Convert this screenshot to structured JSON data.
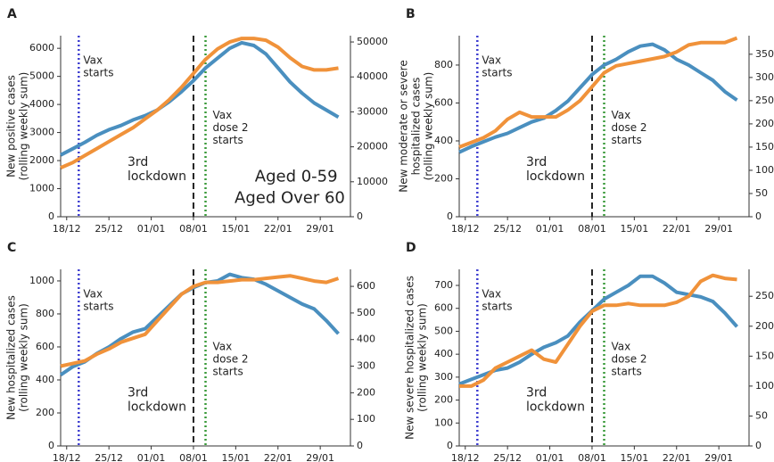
{
  "chart_data": [
    {
      "type": "line",
      "label": "A",
      "ylabel": [
        "New positive cases",
        "(rolling weekly sum)"
      ],
      "x": [
        "17/12",
        "19/12",
        "21/12",
        "23/12",
        "25/12",
        "27/12",
        "29/12",
        "31/12",
        "02/01",
        "04/01",
        "06/01",
        "08/01",
        "10/01",
        "12/01",
        "14/01",
        "16/01",
        "18/01",
        "20/01",
        "22/01",
        "24/01",
        "26/01",
        "28/01",
        "30/01",
        "01/02"
      ],
      "xlim": [
        "17/12",
        "03/02"
      ],
      "xticks": [
        "18/12",
        "25/12",
        "01/01",
        "08/01",
        "15/01",
        "22/01",
        "29/01"
      ],
      "ylim": [
        0,
        6450
      ],
      "yticks": [
        0,
        1000,
        2000,
        3000,
        4000,
        5000,
        6000
      ],
      "y2lim": [
        0,
        51800
      ],
      "y2ticks": [
        0,
        10000,
        20000,
        30000,
        40000,
        50000
      ],
      "series": [
        {
          "name": "Aged Over 60",
          "color": "#4a8fbf",
          "values": [
            2200,
            2420,
            2650,
            2900,
            3100,
            3250,
            3450,
            3600,
            3800,
            4100,
            4450,
            4850,
            5300,
            5650,
            6000,
            6200,
            6100,
            5800,
            5300,
            4800,
            4400,
            4050,
            3800,
            3550
          ]
        },
        {
          "name": "Aged 0-59",
          "color": "#f0923a",
          "axis": "y2",
          "values": [
            14000,
            15500,
            17500,
            19500,
            21500,
            23500,
            25500,
            28000,
            30500,
            33500,
            37000,
            41000,
            45000,
            48000,
            50000,
            51000,
            51000,
            50500,
            48500,
            45500,
            43000,
            42000,
            42000,
            42500
          ]
        }
      ],
      "annotations": [
        {
          "x": "20/12",
          "text": [
            "Vax",
            "starts"
          ],
          "color": "#3c3cd0",
          "style": "dotted",
          "place": "top"
        },
        {
          "x": "08/01",
          "text": [
            "3rd",
            "lockdown"
          ],
          "color": "#222222",
          "style": "dashed",
          "place": "left"
        },
        {
          "x": "10/01",
          "text": [
            "Vax",
            "dose 2",
            "starts"
          ],
          "color": "#3a9a3a",
          "style": "dotted",
          "place": "mid"
        }
      ]
    },
    {
      "type": "line",
      "label": "B",
      "ylabel": [
        "New moderate or severe",
        "hospitalized cases",
        "(rolling weekly sum)"
      ],
      "x": [
        "17/12",
        "19/12",
        "21/12",
        "23/12",
        "25/12",
        "27/12",
        "29/12",
        "31/12",
        "02/01",
        "04/01",
        "06/01",
        "08/01",
        "10/01",
        "12/01",
        "14/01",
        "16/01",
        "18/01",
        "20/01",
        "22/01",
        "24/01",
        "26/01",
        "28/01",
        "30/01",
        "01/02"
      ],
      "xlim": [
        "17/12",
        "03/02"
      ],
      "xticks": [
        "18/12",
        "25/12",
        "01/01",
        "08/01",
        "15/01",
        "22/01",
        "29/01"
      ],
      "ylim": [
        0,
        955
      ],
      "yticks": [
        0,
        200,
        400,
        600,
        800
      ],
      "y2lim": [
        0,
        390
      ],
      "y2ticks": [
        0,
        50,
        100,
        150,
        200,
        250,
        300,
        350
      ],
      "series": [
        {
          "color": "#4a8fbf",
          "values": [
            340,
            370,
            395,
            420,
            440,
            470,
            500,
            520,
            560,
            610,
            680,
            750,
            800,
            830,
            870,
            900,
            910,
            880,
            830,
            800,
            760,
            720,
            660,
            615
          ]
        },
        {
          "color": "#f0923a",
          "axis": "y2",
          "values": [
            150,
            160,
            170,
            185,
            210,
            225,
            215,
            215,
            215,
            230,
            250,
            280,
            310,
            325,
            330,
            335,
            340,
            345,
            355,
            370,
            375,
            375,
            375,
            385
          ]
        }
      ],
      "annotations": [
        {
          "x": "20/12",
          "text": [
            "Vax",
            "starts"
          ],
          "color": "#3c3cd0",
          "style": "dotted",
          "place": "top"
        },
        {
          "x": "08/01",
          "text": [
            "3rd",
            "lockdown"
          ],
          "color": "#222222",
          "style": "dashed",
          "place": "left"
        },
        {
          "x": "10/01",
          "text": [
            "Vax",
            "dose 2",
            "starts"
          ],
          "color": "#3a9a3a",
          "style": "dotted",
          "place": "mid"
        }
      ]
    },
    {
      "type": "line",
      "label": "C",
      "ylabel": [
        "New hospitalized cases",
        "(rolling weekly sum)"
      ],
      "x": [
        "17/12",
        "19/12",
        "21/12",
        "23/12",
        "25/12",
        "27/12",
        "29/12",
        "31/12",
        "02/01",
        "04/01",
        "06/01",
        "08/01",
        "10/01",
        "12/01",
        "14/01",
        "16/01",
        "18/01",
        "20/01",
        "22/01",
        "24/01",
        "26/01",
        "28/01",
        "30/01",
        "01/02"
      ],
      "xlim": [
        "17/12",
        "03/02"
      ],
      "xticks": [
        "18/12",
        "25/12",
        "01/01",
        "08/01",
        "15/01",
        "22/01",
        "29/01"
      ],
      "ylim": [
        0,
        1070
      ],
      "yticks": [
        0,
        200,
        400,
        600,
        800,
        1000
      ],
      "y2lim": [
        0,
        664
      ],
      "y2ticks": [
        0,
        100,
        200,
        300,
        400,
        500,
        600
      ],
      "series": [
        {
          "color": "#4a8fbf",
          "values": [
            430,
            480,
            510,
            560,
            600,
            650,
            690,
            710,
            780,
            850,
            920,
            960,
            990,
            1000,
            1040,
            1020,
            1010,
            980,
            940,
            900,
            860,
            830,
            760,
            680
          ]
        },
        {
          "color": "#f0923a",
          "axis": "y2",
          "values": [
            300,
            310,
            320,
            345,
            365,
            390,
            405,
            420,
            470,
            520,
            570,
            600,
            615,
            615,
            620,
            625,
            625,
            630,
            635,
            640,
            630,
            620,
            615,
            630
          ]
        }
      ],
      "annotations": [
        {
          "x": "20/12",
          "text": [
            "Vax",
            "starts"
          ],
          "color": "#3c3cd0",
          "style": "dotted",
          "place": "top"
        },
        {
          "x": "08/01",
          "text": [
            "3rd",
            "lockdown"
          ],
          "color": "#222222",
          "style": "dashed",
          "place": "left"
        },
        {
          "x": "10/01",
          "text": [
            "Vax",
            "dose 2",
            "starts"
          ],
          "color": "#3a9a3a",
          "style": "dotted",
          "place": "mid"
        }
      ]
    },
    {
      "type": "line",
      "label": "D",
      "ylabel": [
        "New severe hospitalized cases",
        "(rolling weekly sum)"
      ],
      "x": [
        "17/12",
        "19/12",
        "21/12",
        "23/12",
        "25/12",
        "27/12",
        "29/12",
        "31/12",
        "02/01",
        "04/01",
        "06/01",
        "08/01",
        "10/01",
        "12/01",
        "14/01",
        "16/01",
        "18/01",
        "20/01",
        "22/01",
        "24/01",
        "26/01",
        "28/01",
        "30/01",
        "01/02"
      ],
      "xlim": [
        "17/12",
        "03/02"
      ],
      "xticks": [
        "18/12",
        "25/12",
        "01/01",
        "08/01",
        "15/01",
        "22/01",
        "29/01"
      ],
      "ylim": [
        0,
        770
      ],
      "yticks": [
        0,
        100,
        200,
        300,
        400,
        500,
        600,
        700
      ],
      "y2lim": [
        0,
        295
      ],
      "y2ticks": [
        0,
        50,
        100,
        150,
        200,
        250
      ],
      "series": [
        {
          "color": "#4a8fbf",
          "values": [
            270,
            290,
            310,
            330,
            340,
            365,
            400,
            430,
            450,
            480,
            540,
            590,
            640,
            670,
            700,
            740,
            740,
            710,
            670,
            660,
            650,
            630,
            580,
            520
          ]
        },
        {
          "color": "#f0923a",
          "axis": "y2",
          "values": [
            100,
            100,
            110,
            130,
            140,
            150,
            160,
            145,
            140,
            170,
            200,
            225,
            235,
            235,
            238,
            235,
            235,
            235,
            240,
            250,
            275,
            285,
            280,
            278
          ]
        }
      ],
      "annotations": [
        {
          "x": "20/12",
          "text": [
            "Vax",
            "starts"
          ],
          "color": "#3c3cd0",
          "style": "dotted",
          "place": "top"
        },
        {
          "x": "08/01",
          "text": [
            "3rd",
            "lockdown"
          ],
          "color": "#222222",
          "style": "dashed",
          "place": "left"
        },
        {
          "x": "10/01",
          "text": [
            "Vax",
            "dose 2",
            "starts"
          ],
          "color": "#3a9a3a",
          "style": "dotted",
          "place": "mid"
        }
      ]
    }
  ]
}
